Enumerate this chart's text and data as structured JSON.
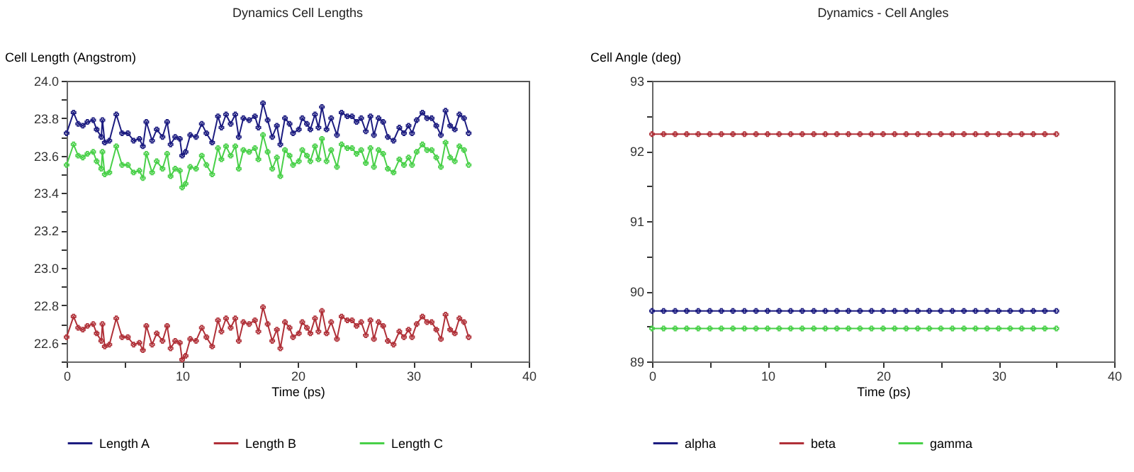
{
  "chart_data": [
    {
      "type": "line",
      "title": "Dynamics Cell Lengths",
      "xlabel": "Time (ps)",
      "ylabel": "Cell Length (Angstrom)",
      "legend": "bottom",
      "marker": "cross",
      "grid": false,
      "x": [
        0,
        0.6,
        1.0,
        1.4,
        1.8,
        2.3,
        2.6,
        3.0,
        3.1,
        3.3,
        3.7,
        4.3,
        4.8,
        5.3,
        5.8,
        6.3,
        6.6,
        6.9,
        7.4,
        7.8,
        8.3,
        8.7,
        9.0,
        9.4,
        9.8,
        10.0,
        10.3,
        10.7,
        11.2,
        11.7,
        12.1,
        12.6,
        13.1,
        13.4,
        13.8,
        14.2,
        14.6,
        14.9,
        15.3,
        15.8,
        16.3,
        16.6,
        17.0,
        17.4,
        17.8,
        18.2,
        18.5,
        18.9,
        19.3,
        19.6,
        20.1,
        20.4,
        20.8,
        21.1,
        21.5,
        21.8,
        22.1,
        22.5,
        22.9,
        23.4,
        23.8,
        24.3,
        24.7,
        25.1,
        25.5,
        25.9,
        26.3,
        26.6,
        27.0,
        27.4,
        27.8,
        28.3,
        28.8,
        29.2,
        29.6,
        29.9,
        30.3,
        30.8,
        31.2,
        31.6,
        32.0,
        32.4,
        32.8,
        33.2,
        33.6,
        34.0,
        34.4,
        34.8
      ],
      "series": [
        {
          "name": "Length A",
          "color": "#1c1c80",
          "values": [
            23.72,
            23.83,
            23.77,
            23.76,
            23.78,
            23.79,
            23.74,
            23.7,
            23.79,
            23.67,
            23.68,
            23.82,
            23.72,
            23.72,
            23.68,
            23.69,
            23.65,
            23.78,
            23.68,
            23.74,
            23.7,
            23.78,
            23.66,
            23.7,
            23.69,
            23.6,
            23.62,
            23.71,
            23.7,
            23.77,
            23.72,
            23.67,
            23.81,
            23.75,
            23.82,
            23.77,
            23.82,
            23.7,
            23.8,
            23.79,
            23.81,
            23.75,
            23.88,
            23.79,
            23.7,
            23.76,
            23.66,
            23.8,
            23.77,
            23.72,
            23.74,
            23.8,
            23.77,
            23.74,
            23.82,
            23.75,
            23.86,
            23.74,
            23.8,
            23.71,
            23.83,
            23.81,
            23.81,
            23.78,
            23.8,
            23.73,
            23.81,
            23.71,
            23.8,
            23.78,
            23.7,
            23.68,
            23.75,
            23.72,
            23.76,
            23.72,
            23.79,
            23.83,
            23.8,
            23.8,
            23.76,
            23.71,
            23.84,
            23.76,
            23.74,
            23.82,
            23.8,
            23.72
          ]
        },
        {
          "name": "Length B",
          "color": "#b03038",
          "values": [
            22.63,
            22.74,
            22.68,
            22.67,
            22.69,
            22.7,
            22.65,
            22.61,
            22.7,
            22.58,
            22.59,
            22.73,
            22.63,
            22.63,
            22.59,
            22.6,
            22.56,
            22.69,
            22.59,
            22.65,
            22.61,
            22.69,
            22.57,
            22.61,
            22.6,
            22.51,
            22.53,
            22.62,
            22.61,
            22.68,
            22.63,
            22.58,
            22.72,
            22.66,
            22.73,
            22.68,
            22.73,
            22.61,
            22.71,
            22.7,
            22.72,
            22.66,
            22.79,
            22.7,
            22.61,
            22.67,
            22.57,
            22.71,
            22.68,
            22.63,
            22.65,
            22.71,
            22.68,
            22.65,
            22.73,
            22.66,
            22.77,
            22.65,
            22.71,
            22.62,
            22.74,
            22.72,
            22.72,
            22.69,
            22.71,
            22.64,
            22.72,
            22.62,
            22.71,
            22.69,
            22.61,
            22.59,
            22.66,
            22.63,
            22.67,
            22.63,
            22.7,
            22.74,
            22.71,
            22.71,
            22.67,
            22.62,
            22.75,
            22.67,
            22.65,
            22.73,
            22.71,
            22.63
          ]
        },
        {
          "name": "Length C",
          "color": "#48d048",
          "values": [
            23.55,
            23.66,
            23.6,
            23.59,
            23.61,
            23.62,
            23.57,
            23.53,
            23.62,
            23.5,
            23.51,
            23.65,
            23.55,
            23.55,
            23.51,
            23.52,
            23.48,
            23.61,
            23.51,
            23.57,
            23.53,
            23.61,
            23.49,
            23.53,
            23.52,
            23.43,
            23.45,
            23.54,
            23.53,
            23.6,
            23.55,
            23.5,
            23.64,
            23.58,
            23.65,
            23.6,
            23.65,
            23.53,
            23.63,
            23.62,
            23.64,
            23.58,
            23.71,
            23.62,
            23.53,
            23.59,
            23.49,
            23.63,
            23.6,
            23.55,
            23.57,
            23.63,
            23.6,
            23.57,
            23.65,
            23.58,
            23.69,
            23.57,
            23.63,
            23.54,
            23.66,
            23.64,
            23.64,
            23.61,
            23.63,
            23.56,
            23.64,
            23.54,
            23.63,
            23.61,
            23.53,
            23.51,
            23.58,
            23.55,
            23.59,
            23.55,
            23.62,
            23.66,
            23.63,
            23.63,
            23.59,
            23.54,
            23.67,
            23.59,
            23.57,
            23.65,
            23.63,
            23.55
          ]
        }
      ],
      "xlim": [
        0,
        40
      ],
      "xticks": [
        0,
        {
          "value": 5,
          "label": null
        },
        10,
        {
          "value": 15,
          "label": null
        },
        20,
        {
          "value": 25,
          "label": null
        },
        30,
        {
          "value": 35,
          "label": null
        },
        40
      ],
      "ylim": [
        22.5,
        24.0
      ],
      "yticks": [
        {
          "value": 22.5,
          "label": null
        },
        {
          "value": 22.6,
          "label": "22.6"
        },
        {
          "value": 22.7,
          "label": null
        },
        {
          "value": 22.8,
          "label": "22.8"
        },
        {
          "value": 22.9,
          "label": null
        },
        {
          "value": 23.0,
          "label": "23.0"
        },
        {
          "value": 23.1,
          "label": null
        },
        {
          "value": 23.2,
          "label": "23.2"
        },
        {
          "value": 23.3,
          "label": null
        },
        {
          "value": 23.4,
          "label": "23.4"
        },
        {
          "value": 23.5,
          "label": null
        },
        {
          "value": 23.6,
          "label": "23.6"
        },
        {
          "value": 23.7,
          "label": null
        },
        {
          "value": 23.8,
          "label": "23.8"
        },
        {
          "value": 23.9,
          "label": null
        },
        {
          "value": 24.0,
          "label": "24.0"
        }
      ]
    },
    {
      "type": "line",
      "title": "Dynamics - Cell Angles",
      "xlabel": "Time (ps)",
      "ylabel": "Cell Angle (deg)",
      "legend": "bottom",
      "marker": "cross",
      "grid": false,
      "x": [
        0,
        1,
        2,
        3,
        4,
        5,
        6,
        7,
        8,
        9,
        10,
        11,
        12,
        13,
        14,
        15,
        16,
        17,
        18,
        19,
        20,
        21,
        22,
        23,
        24,
        25,
        26,
        27,
        28,
        29,
        30,
        31,
        32,
        33,
        34,
        35
      ],
      "series": [
        {
          "name": "alpha",
          "color": "#1c1c80",
          "values": [
            89.72,
            89.72,
            89.72,
            89.72,
            89.72,
            89.72,
            89.72,
            89.72,
            89.72,
            89.72,
            89.72,
            89.72,
            89.72,
            89.72,
            89.72,
            89.72,
            89.72,
            89.72,
            89.72,
            89.72,
            89.72,
            89.72,
            89.72,
            89.72,
            89.72,
            89.72,
            89.72,
            89.72,
            89.72,
            89.72,
            89.72,
            89.72,
            89.72,
            89.72,
            89.72,
            89.72
          ]
        },
        {
          "name": "beta",
          "color": "#b03038",
          "values": [
            92.24,
            92.24,
            92.24,
            92.24,
            92.24,
            92.24,
            92.24,
            92.24,
            92.24,
            92.24,
            92.24,
            92.24,
            92.24,
            92.24,
            92.24,
            92.24,
            92.24,
            92.24,
            92.24,
            92.24,
            92.24,
            92.24,
            92.24,
            92.24,
            92.24,
            92.24,
            92.24,
            92.24,
            92.24,
            92.24,
            92.24,
            92.24,
            92.24,
            92.24,
            92.24,
            92.24
          ]
        },
        {
          "name": "gamma",
          "color": "#48d048",
          "values": [
            89.47,
            89.47,
            89.47,
            89.47,
            89.47,
            89.47,
            89.47,
            89.47,
            89.47,
            89.47,
            89.47,
            89.47,
            89.47,
            89.47,
            89.47,
            89.47,
            89.47,
            89.47,
            89.47,
            89.47,
            89.47,
            89.47,
            89.47,
            89.47,
            89.47,
            89.47,
            89.47,
            89.47,
            89.47,
            89.47,
            89.47,
            89.47,
            89.47,
            89.47,
            89.47,
            89.47
          ]
        }
      ],
      "xlim": [
        0,
        40
      ],
      "xticks": [
        0,
        {
          "value": 5,
          "label": null
        },
        10,
        {
          "value": 15,
          "label": null
        },
        20,
        {
          "value": 25,
          "label": null
        },
        30,
        {
          "value": 35,
          "label": null
        },
        40
      ],
      "ylim": [
        89,
        93
      ],
      "yticks": [
        89,
        {
          "value": 89.5,
          "label": null
        },
        90,
        {
          "value": 90.5,
          "label": null
        },
        91,
        {
          "value": 91.5,
          "label": null
        },
        92,
        {
          "value": 92.5,
          "label": null
        },
        93
      ]
    }
  ]
}
